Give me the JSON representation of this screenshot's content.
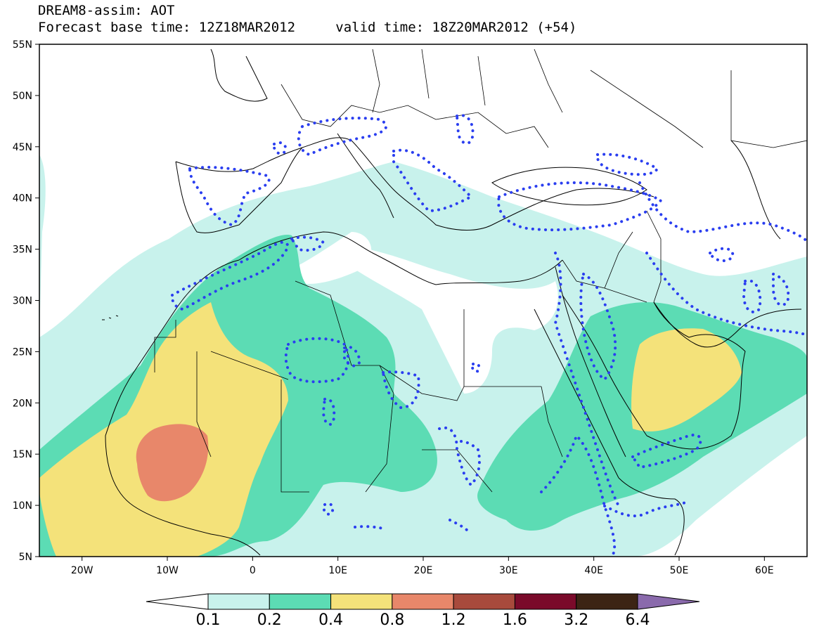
{
  "header": {
    "title": "DREAM8-assim: AOT",
    "base_time_label": "Forecast base time: 12Z18MAR2012",
    "valid_time_label": "valid time: 18Z20MAR2012 (+54)"
  },
  "axes": {
    "lat_labels": [
      "55N",
      "50N",
      "45N",
      "40N",
      "35N",
      "30N",
      "25N",
      "20N",
      "15N",
      "10N",
      "5N"
    ],
    "lat_values": [
      55,
      50,
      45,
      40,
      35,
      30,
      25,
      20,
      15,
      10,
      5
    ],
    "lon_labels": [
      "20W",
      "10W",
      "0",
      "10E",
      "20E",
      "30E",
      "40E",
      "50E",
      "60E"
    ],
    "lon_values": [
      -20,
      -10,
      0,
      10,
      20,
      30,
      40,
      50,
      60
    ],
    "lon_range": [
      -25,
      65
    ],
    "lat_range": [
      5,
      55
    ]
  },
  "colorbar": {
    "labels": [
      "0.1",
      "0.2",
      "0.4",
      "0.8",
      "1.2",
      "1.6",
      "3.2",
      "6.4"
    ],
    "colors": [
      "#ffffff",
      "#c8f2ec",
      "#5cdcb4",
      "#f4e27a",
      "#e8876a",
      "#a84a3c",
      "#7a0a2a",
      "#3c2414",
      "#8a6aac"
    ]
  },
  "legend": {
    "contour_style": "blue dotted contours",
    "contour_color": "#2a3ef0",
    "land_border_color": "#000000"
  }
}
